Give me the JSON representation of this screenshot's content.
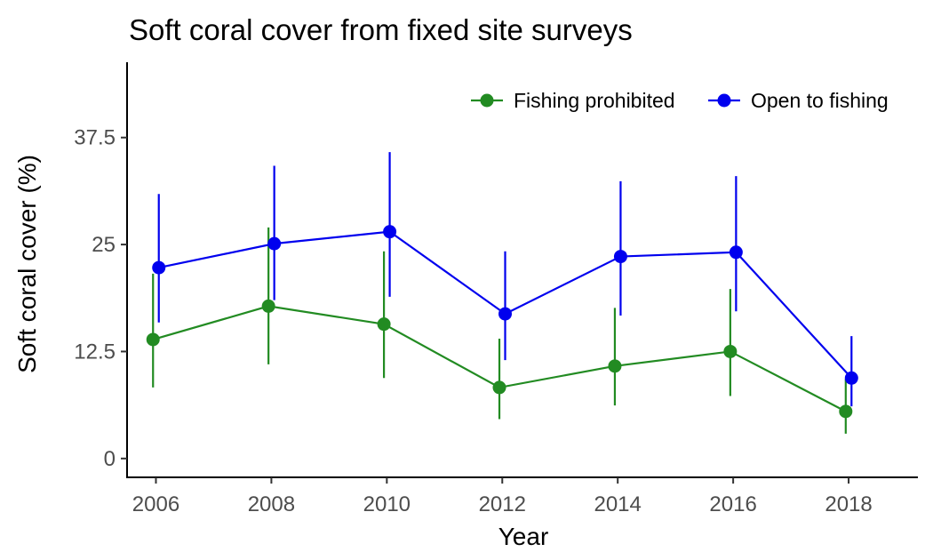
{
  "chart_data": {
    "type": "line",
    "title": "Soft coral cover from fixed site surveys",
    "xlabel": "Year",
    "ylabel": "Soft coral cover (%)",
    "x": [
      2006,
      2008,
      2010,
      2012,
      2014,
      2016,
      2018
    ],
    "xlim": [
      2005.5,
      2019.2
    ],
    "ylim": [
      -2.2,
      46.3
    ],
    "x_ticks": [
      2006,
      2008,
      2010,
      2012,
      2014,
      2016,
      2018
    ],
    "x_tick_labels": [
      "2006",
      "2008",
      "2010",
      "2012",
      "2014",
      "2016",
      "2018"
    ],
    "y_ticks": [
      0,
      12.5,
      25,
      37.5
    ],
    "y_tick_labels": [
      "0",
      "12.5",
      "25",
      "37.5"
    ],
    "grid": false,
    "legend_position": "top-right",
    "series": [
      {
        "name": "Fishing prohibited",
        "color": "#228B22",
        "dodge": -0.05,
        "values": [
          13.9,
          17.8,
          15.7,
          8.3,
          10.8,
          12.5,
          5.5
        ],
        "lower": [
          8.3,
          11.0,
          9.4,
          4.6,
          6.2,
          7.3,
          2.9
        ],
        "upper": [
          21.6,
          27.0,
          24.2,
          14.0,
          17.6,
          19.8,
          9.3
        ]
      },
      {
        "name": "Open to fishing",
        "color": "#0000EE",
        "dodge": 0.05,
        "values": [
          22.3,
          25.1,
          26.5,
          16.9,
          23.6,
          24.1,
          9.4
        ],
        "lower": [
          15.9,
          18.5,
          18.9,
          11.5,
          16.7,
          17.2,
          6.1
        ],
        "upper": [
          30.9,
          34.2,
          35.8,
          24.2,
          32.4,
          33.0,
          14.3
        ]
      }
    ]
  }
}
